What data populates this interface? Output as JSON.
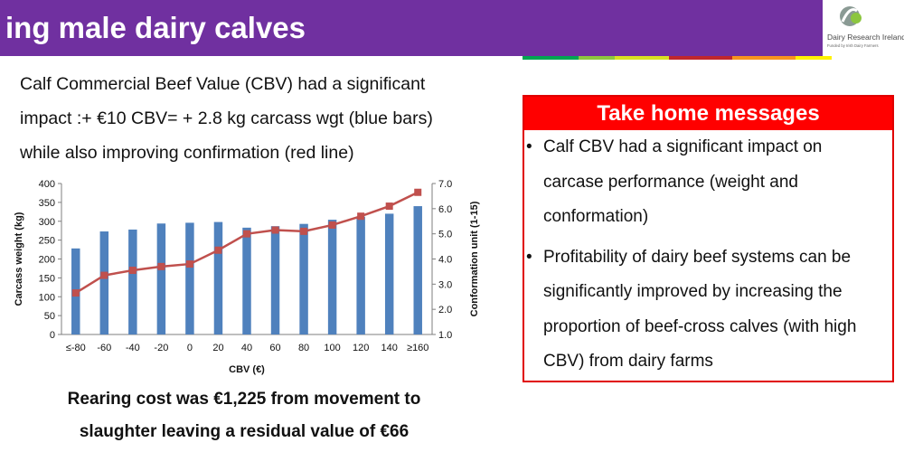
{
  "banner": {
    "title": "ing male dairy calves"
  },
  "logo": {
    "name": "Dairy Research Ireland",
    "tagline": "Funded by Irish Dairy Farmers"
  },
  "colors": {
    "banner": "#7030a0",
    "accent_red": "#ff0000",
    "bar_blue": "#4f81bd",
    "line_red": "#c0504d"
  },
  "intro": {
    "line1": "Calf Commercial Beef Value (CBV) had a significant",
    "line2": "impact :+ €10 CBV= + 2.8 kg carcass wgt (blue bars)",
    "line3": "while also improving confirmation (red line)"
  },
  "rearing": {
    "line1": "Rearing cost was €1,225 from movement to",
    "line2": "slaughter leaving a residual value of €66"
  },
  "take_home": {
    "title": "Take home messages",
    "bullets": [
      {
        "marker": "•",
        "lines": [
          "Calf CBV had a significant impact on",
          "carcase performance (weight and",
          "conformation)"
        ]
      },
      {
        "marker": "•",
        "lines": [
          "Profitability of dairy beef systems can be",
          "significantly improved by increasing the",
          "proportion of beef-cross calves (with high",
          "CBV) from dairy farms"
        ]
      }
    ]
  },
  "chart_data": {
    "type": "bar",
    "categories": [
      "≤-80",
      "-60",
      "-40",
      "-20",
      "0",
      "20",
      "40",
      "60",
      "80",
      "100",
      "120",
      "140",
      "≥160"
    ],
    "series": [
      {
        "type": "bar",
        "axis": "left",
        "color": "#4f81bd",
        "values": [
          228,
          273,
          278,
          294,
          296,
          298,
          283,
          287,
          293,
          304,
          312,
          320,
          340
        ]
      },
      {
        "type": "line",
        "axis": "right",
        "color": "#c0504d",
        "values": [
          2.65,
          3.35,
          3.55,
          3.7,
          3.8,
          4.35,
          5.0,
          5.15,
          5.1,
          5.35,
          5.7,
          6.1,
          6.65
        ]
      }
    ],
    "xlabel": "CBV (€)",
    "ylabel": "Carcass weight (kg)",
    "y2label": "Conformation unit (1-15)",
    "ylim": [
      0,
      400
    ],
    "y2lim": [
      1.0,
      7.0
    ],
    "yticks": [
      "0",
      "50",
      "100",
      "150",
      "200",
      "250",
      "300",
      "350",
      "400"
    ],
    "y2ticks": [
      "1.0",
      "2.0",
      "3.0",
      "4.0",
      "5.0",
      "6.0",
      "7.0"
    ],
    "grid": false,
    "legend": "none"
  }
}
